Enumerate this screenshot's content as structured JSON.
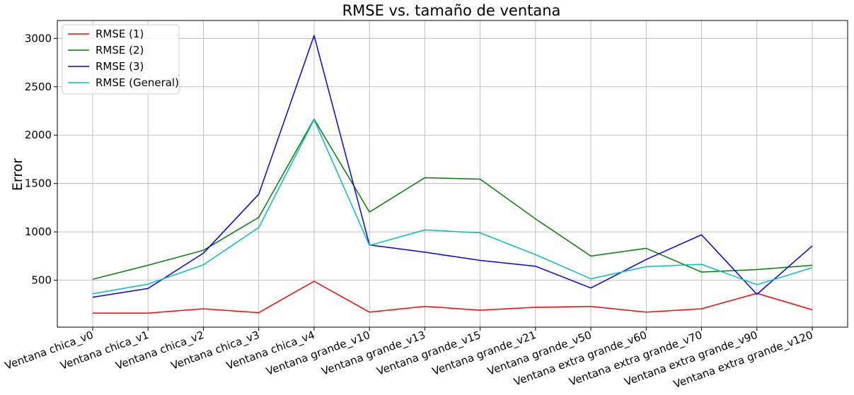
{
  "chart_data": {
    "type": "line",
    "title": "RMSE vs. tamaño de ventana",
    "xlabel": "",
    "ylabel": "Error",
    "categories": [
      "Ventana chica_v0",
      "Ventana chica_v1",
      "Ventana chica_v2",
      "Ventana chica_v3",
      "Ventana chica_v4",
      "Ventana grande_v10",
      "Ventana grande_v13",
      "Ventana grande_v15",
      "Ventana grande_v21",
      "Ventana grande_v50",
      "Ventana extra grande_v60",
      "Ventana extra grande_v70",
      "Ventana extra grande_v90",
      "Ventana extra grande_v120"
    ],
    "series": [
      {
        "name": "RMSE (1)",
        "color": "#ff0000",
        "values": [
          160,
          160,
          205,
          165,
          490,
          170,
          230,
          190,
          220,
          230,
          170,
          205,
          365,
          195
        ]
      },
      {
        "name": "RMSE (2)",
        "color": "#008000",
        "values": [
          510,
          655,
          810,
          1150,
          2165,
          1205,
          1560,
          1545,
          1135,
          750,
          830,
          585,
          610,
          655
        ]
      },
      {
        "name": "RMSE (3)",
        "color": "#0000ff",
        "values": [
          325,
          415,
          780,
          1390,
          3030,
          865,
          790,
          705,
          645,
          420,
          715,
          970,
          355,
          855
        ]
      },
      {
        "name": "RMSE (General)",
        "color": "#00bfbf",
        "values": [
          360,
          460,
          660,
          1045,
          2160,
          860,
          1020,
          990,
          765,
          515,
          640,
          665,
          455,
          630
        ]
      }
    ],
    "yticks": [
      500,
      1000,
      1500,
      2000,
      2500,
      3000
    ],
    "ylim": [
      15,
      3185
    ],
    "grid": true,
    "legend_position": "upper-left"
  }
}
